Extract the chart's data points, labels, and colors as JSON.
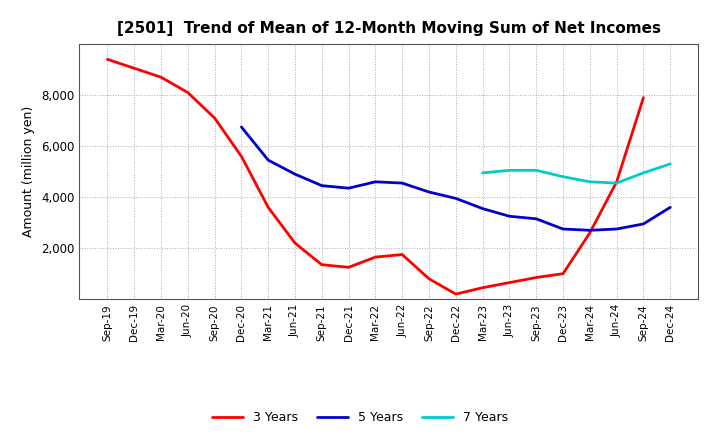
{
  "title": "[2501]  Trend of Mean of 12-Month Moving Sum of Net Incomes",
  "ylabel": "Amount (million yen)",
  "background_color": "#ffffff",
  "grid_color": "#aaaaaa",
  "ylim": [
    0,
    10000
  ],
  "yticks": [
    2000,
    4000,
    6000,
    8000
  ],
  "x_labels": [
    "Sep-19",
    "Dec-19",
    "Mar-20",
    "Jun-20",
    "Sep-20",
    "Dec-20",
    "Mar-21",
    "Jun-21",
    "Sep-21",
    "Dec-21",
    "Mar-22",
    "Jun-22",
    "Sep-22",
    "Dec-22",
    "Mar-23",
    "Jun-23",
    "Sep-23",
    "Dec-23",
    "Mar-24",
    "Jun-24",
    "Sep-24",
    "Dec-24"
  ],
  "series": {
    "3 Years": {
      "color": "#ff0000",
      "linewidth": 2.0,
      "values": [
        9400,
        9050,
        8700,
        8100,
        7100,
        5600,
        3600,
        2200,
        1350,
        1250,
        1650,
        1750,
        800,
        200,
        450,
        650,
        850,
        1000,
        2600,
        4600,
        7900,
        null
      ]
    },
    "5 Years": {
      "color": "#0000cc",
      "linewidth": 2.0,
      "values": [
        null,
        null,
        null,
        null,
        null,
        6750,
        5450,
        4900,
        4450,
        4350,
        4600,
        4550,
        4200,
        3950,
        3550,
        3250,
        3150,
        2750,
        2700,
        2750,
        2950,
        3600
      ]
    },
    "7 Years": {
      "color": "#00cccc",
      "linewidth": 2.0,
      "values": [
        null,
        null,
        null,
        null,
        null,
        null,
        null,
        null,
        null,
        null,
        null,
        null,
        null,
        null,
        4950,
        5050,
        5050,
        4800,
        4600,
        4550,
        4950,
        5300
      ]
    },
    "10 Years": {
      "color": "#008000",
      "linewidth": 2.0,
      "values": [
        null,
        null,
        null,
        null,
        null,
        null,
        null,
        null,
        null,
        null,
        null,
        null,
        null,
        null,
        null,
        null,
        null,
        null,
        null,
        null,
        null,
        null
      ]
    }
  }
}
